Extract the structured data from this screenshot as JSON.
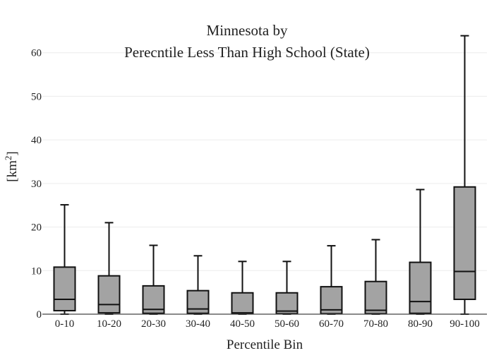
{
  "chart_data": {
    "type": "box",
    "title_lines": [
      "Minnesota  by",
      "Perecntile Less Than High School (State)"
    ],
    "xlabel": "Percentile Bin",
    "ylabel": "[km",
    "ylabel_sup": "2",
    "ylabel_close": "]",
    "ylim": [
      0,
      64
    ],
    "yticks": [
      "0",
      "10",
      "20",
      "30",
      "40",
      "50",
      "60"
    ],
    "ytick_values": [
      0,
      10,
      20,
      30,
      40,
      50,
      60
    ],
    "grid": true,
    "categories": [
      "0-10",
      "10-20",
      "20-30",
      "30-40",
      "40-50",
      "50-60",
      "60-70",
      "70-80",
      "80-90",
      "90-100"
    ],
    "boxes": [
      {
        "min": 0.0,
        "q1": 0.8,
        "median": 3.4,
        "q3": 10.8,
        "max": 25.1
      },
      {
        "min": 0.0,
        "q1": 0.3,
        "median": 2.2,
        "q3": 8.8,
        "max": 21.0
      },
      {
        "min": 0.0,
        "q1": 0.2,
        "median": 1.1,
        "q3": 6.5,
        "max": 15.8
      },
      {
        "min": 0.0,
        "q1": 0.2,
        "median": 1.2,
        "q3": 5.4,
        "max": 13.4
      },
      {
        "min": 0.0,
        "q1": 0.1,
        "median": 0.3,
        "q3": 4.9,
        "max": 12.1
      },
      {
        "min": 0.0,
        "q1": 0.1,
        "median": 0.7,
        "q3": 4.9,
        "max": 12.1
      },
      {
        "min": 0.0,
        "q1": 0.1,
        "median": 1.0,
        "q3": 6.3,
        "max": 15.7
      },
      {
        "min": 0.0,
        "q1": 0.1,
        "median": 0.9,
        "q3": 7.5,
        "max": 17.1
      },
      {
        "min": 0.0,
        "q1": 0.2,
        "median": 2.9,
        "q3": 11.9,
        "max": 28.6
      },
      {
        "min": 0.0,
        "q1": 3.4,
        "median": 9.8,
        "q3": 29.2,
        "max": 63.9
      }
    ],
    "colors": {
      "box_fill": "#a3a3a3",
      "box_stroke": "#111111",
      "grid": "#ececec"
    }
  }
}
